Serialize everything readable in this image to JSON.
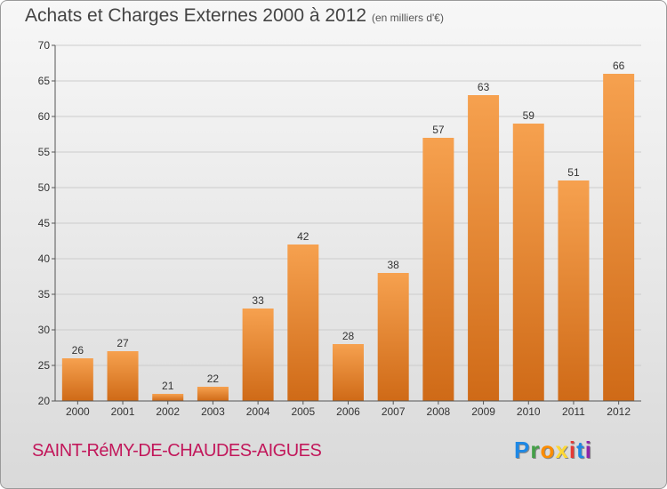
{
  "title": "Achats et Charges Externes 2000 à 2012",
  "subtitle": "(en milliers d'€)",
  "commune": "SAINT-RéMY-DE-CHAUDES-AIGUES",
  "logo": {
    "letters": [
      "P",
      "r",
      "o",
      "x",
      "i",
      "t",
      "i"
    ],
    "colors": [
      "#1e88e5",
      "#43a047",
      "#fb8c00",
      "#fdd835",
      "#e53935",
      "#1e88e5",
      "#8e24aa"
    ]
  },
  "colors": {
    "bar_top": "#f6a14f",
    "bar_bottom": "#cf6a17",
    "grid": "#cccccc",
    "axis": "#555555",
    "label": "#333333"
  },
  "chart_data": {
    "type": "bar",
    "categories": [
      "2000",
      "2001",
      "2002",
      "2003",
      "2004",
      "2005",
      "2006",
      "2007",
      "2008",
      "2009",
      "2010",
      "2011",
      "2012"
    ],
    "values": [
      26,
      27,
      21,
      22,
      33,
      42,
      28,
      38,
      57,
      63,
      59,
      51,
      66
    ],
    "ylim": [
      20,
      70
    ],
    "yticks": [
      20,
      25,
      30,
      35,
      40,
      45,
      50,
      55,
      60,
      65,
      70
    ],
    "grid": true,
    "data_labels": true
  }
}
